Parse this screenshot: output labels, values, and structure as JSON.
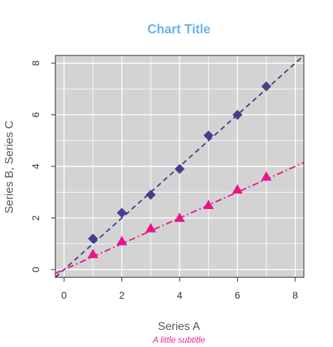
{
  "chart_data": {
    "type": "scatter",
    "title": "Chart Title",
    "subtitle": "A little subtitle",
    "xlabel": "Series A",
    "ylabel": "Series B, Series C",
    "xlim": [
      -0.3,
      8.3
    ],
    "ylim": [
      -0.3,
      8.3
    ],
    "xticks": [
      0,
      2,
      4,
      6,
      8
    ],
    "yticks": [
      0,
      2,
      4,
      6,
      8
    ],
    "grid": true,
    "legend": "none",
    "colors": {
      "title": "#6cb4ee",
      "subtitle": "#e8278c",
      "panel_background": "#d3d3d3",
      "gridline": "#ffffff",
      "series_b": "#483d8b",
      "series_c": "#e9168a"
    },
    "x": [
      1,
      2,
      3,
      4,
      5,
      6,
      7
    ],
    "series": [
      {
        "values": [
          1.2,
          2.2,
          2.9,
          3.9,
          5.2,
          6.0,
          7.1
        ],
        "marker": "diamond",
        "color": "#483d8b",
        "trend": {
          "type": "linear",
          "x": [
            -0.3,
            8.3
          ],
          "y": [
            -0.3,
            8.3
          ],
          "dash": "dashed"
        }
      },
      {
        "values": [
          0.6,
          1.1,
          1.6,
          2.0,
          2.5,
          3.1,
          3.6
        ],
        "marker": "triangle",
        "color": "#e9168a",
        "trend": {
          "type": "linear",
          "x": [
            -0.3,
            8.3
          ],
          "y": [
            -0.15,
            4.15
          ],
          "dash": "dashdot"
        }
      }
    ]
  }
}
